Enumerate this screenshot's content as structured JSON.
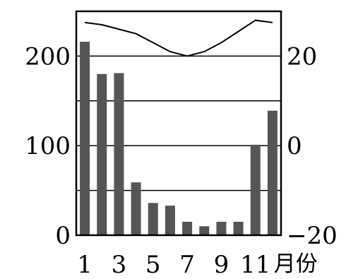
{
  "chart_data": {
    "type": "bar",
    "categories": [
      "1",
      "2",
      "3",
      "4",
      "5",
      "6",
      "7",
      "8",
      "9",
      "10",
      "11",
      "12"
    ],
    "series": [
      {
        "kind": "bar",
        "axis": "left",
        "values": [
          216,
          180,
          181,
          59,
          36,
          33,
          15,
          10,
          15,
          15,
          101,
          139
        ]
      },
      {
        "kind": "line",
        "axis": "right",
        "values": [
          27.5,
          27,
          26,
          25,
          23,
          21,
          20,
          21,
          23,
          25.5,
          28,
          27.5
        ]
      }
    ],
    "y_left": {
      "lim": [
        0,
        250
      ],
      "ticks": [
        0,
        100,
        200
      ]
    },
    "y_right": {
      "lim": [
        -20,
        30
      ],
      "ticks": [
        -20,
        0,
        20
      ]
    },
    "x_ticks": [
      "1",
      "3",
      "5",
      "7",
      "9",
      "11"
    ],
    "x_unit": "月份",
    "grid": true,
    "colors": {
      "bar": "#555555",
      "line": "#000000",
      "grid": "#000000"
    }
  }
}
